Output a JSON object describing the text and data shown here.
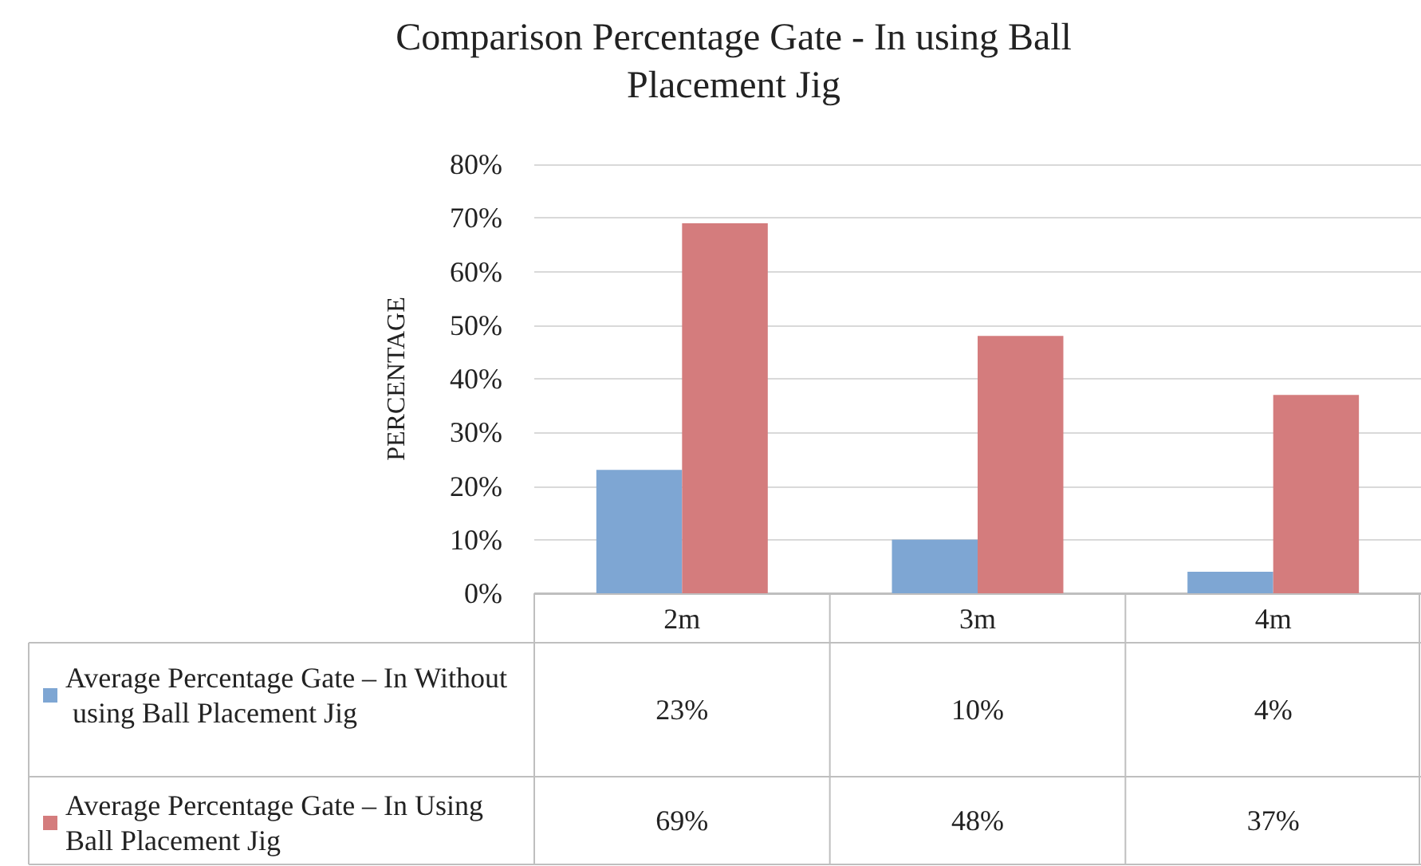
{
  "chart_data": {
    "type": "bar",
    "title": "Comparison Percentage Gate - In using Ball\nPlacement Jig",
    "ylabel": "PERCENTAGE",
    "categories": [
      "2m",
      "3m",
      "4m"
    ],
    "series": [
      {
        "name": "Average Percentage Gate – In Without using Ball Placement Jig",
        "color": "#7ea6d3",
        "values": [
          23,
          10,
          4
        ],
        "value_labels": [
          "23%",
          "10%",
          "4%"
        ]
      },
      {
        "name": "Average Percentage Gate – In Using Ball Placement Jig",
        "color": "#d47c7d",
        "values": [
          69,
          48,
          37
        ],
        "value_labels": [
          "69%",
          "48%",
          "37%"
        ]
      }
    ],
    "ylim": [
      0,
      80
    ],
    "yticks": [
      {
        "value": 0,
        "label": "0%"
      },
      {
        "value": 10,
        "label": "10%"
      },
      {
        "value": 20,
        "label": "20%"
      },
      {
        "value": 30,
        "label": "30%"
      },
      {
        "value": 40,
        "label": "40%"
      },
      {
        "value": 50,
        "label": "50%"
      },
      {
        "value": 60,
        "label": "60%"
      },
      {
        "value": 70,
        "label": "70%"
      },
      {
        "value": 80,
        "label": "80%"
      }
    ],
    "grid": true,
    "legend": "bottom"
  }
}
